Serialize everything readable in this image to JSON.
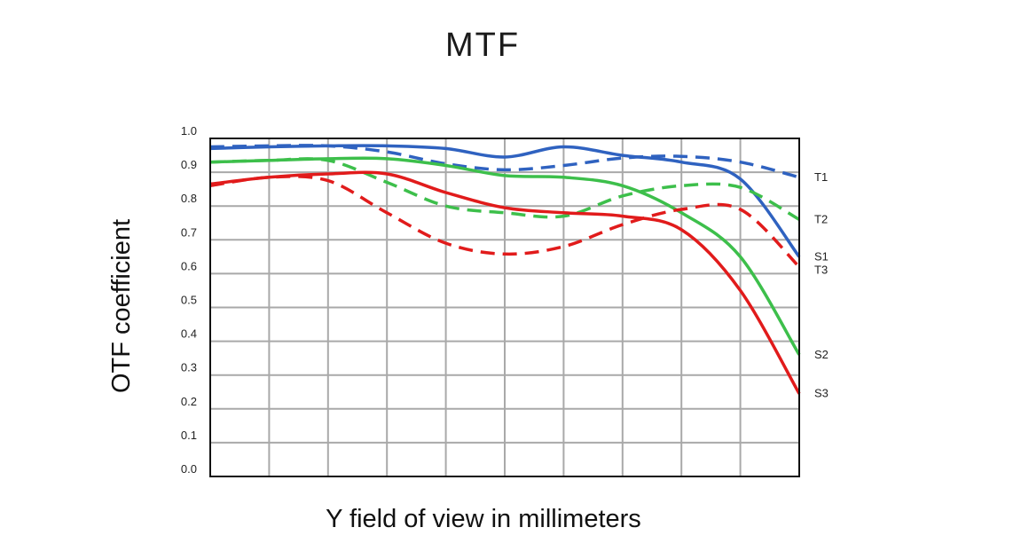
{
  "chart_data": {
    "type": "line",
    "title": "MTF",
    "xlabel": "Y field of view in millimeters",
    "ylabel": "OTF coefficient",
    "xlim": [
      0,
      10
    ],
    "ylim": [
      0,
      1.0
    ],
    "yticks": [
      "0.0",
      "0.1",
      "0.2",
      "0.3",
      "0.4",
      "0.5",
      "0.6",
      "0.7",
      "0.8",
      "0.9",
      "1.0"
    ],
    "xgrid_count": 10,
    "grid": true,
    "series": [
      {
        "name": "T1",
        "color": "#2f62c0",
        "dash": true,
        "x": [
          0,
          1,
          2,
          3,
          4,
          5,
          6,
          7,
          8,
          9,
          10
        ],
        "y": [
          0.975,
          0.978,
          0.978,
          0.96,
          0.925,
          0.907,
          0.92,
          0.942,
          0.947,
          0.93,
          0.885
        ]
      },
      {
        "name": "S1",
        "color": "#2f62c0",
        "dash": false,
        "x": [
          0,
          1,
          2,
          3,
          4,
          5,
          6,
          7,
          8,
          9,
          10
        ],
        "y": [
          0.97,
          0.975,
          0.978,
          0.978,
          0.97,
          0.945,
          0.975,
          0.95,
          0.93,
          0.88,
          0.65
        ]
      },
      {
        "name": "T2",
        "color": "#3dbf4b",
        "dash": true,
        "x": [
          0,
          1,
          2,
          3,
          4,
          5,
          6,
          7,
          8,
          9,
          10
        ],
        "y": [
          0.93,
          0.935,
          0.935,
          0.87,
          0.8,
          0.78,
          0.77,
          0.83,
          0.86,
          0.855,
          0.76
        ]
      },
      {
        "name": "S2",
        "color": "#3dbf4b",
        "dash": false,
        "x": [
          0,
          1,
          2,
          3,
          4,
          5,
          6,
          7,
          8,
          9,
          10
        ],
        "y": [
          0.93,
          0.935,
          0.94,
          0.94,
          0.92,
          0.89,
          0.885,
          0.86,
          0.78,
          0.65,
          0.36
        ]
      },
      {
        "name": "T3",
        "color": "#e11b1b",
        "dash": true,
        "x": [
          0,
          1,
          2,
          3,
          4,
          5,
          6,
          7,
          8,
          9,
          10
        ],
        "y": [
          0.86,
          0.885,
          0.875,
          0.78,
          0.69,
          0.658,
          0.68,
          0.745,
          0.79,
          0.79,
          0.62
        ]
      },
      {
        "name": "S3",
        "color": "#e11b1b",
        "dash": false,
        "x": [
          0,
          1,
          2,
          3,
          4,
          5,
          6,
          7,
          8,
          9,
          10
        ],
        "y": [
          0.865,
          0.885,
          0.895,
          0.895,
          0.84,
          0.795,
          0.78,
          0.77,
          0.73,
          0.55,
          0.245
        ]
      }
    ]
  }
}
